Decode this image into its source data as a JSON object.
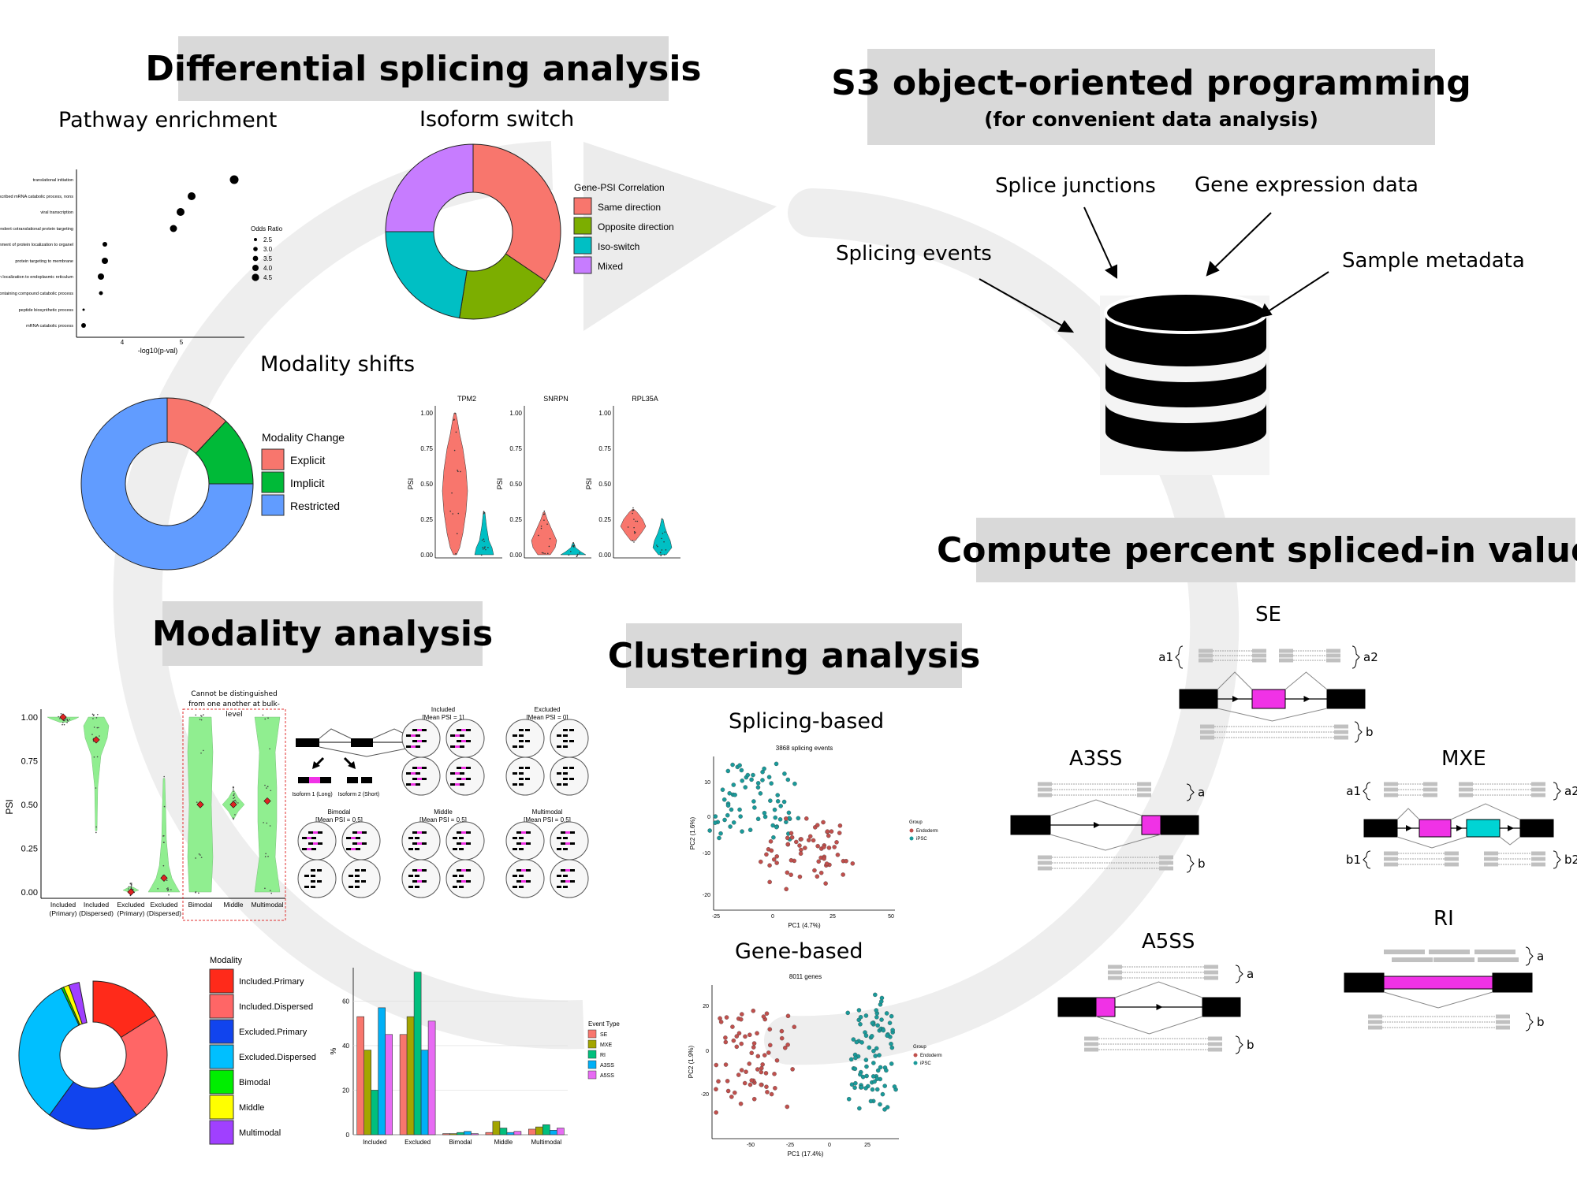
{
  "sections": {
    "differential": "Differential splicing analysis",
    "s3": "S3 object-oriented programming",
    "s3_sub": "(for convenient data analysis)",
    "psi": "Compute percent spliced-in values",
    "modality": "Modality analysis",
    "clustering": "Clustering analysis"
  },
  "data_sources": [
    "Splicing events",
    "Splice junctions",
    "Gene expression data",
    "Sample metadata"
  ],
  "colors": {
    "red": "#f8766d",
    "green": "#7cae00",
    "cyan": "#00bfc4",
    "violet": "#c77cff",
    "magenta": "#f032e6",
    "light_green": "#90ee90"
  },
  "pathway": {
    "title": "Pathway enrichment",
    "terms": [
      "translational initiation",
      "nuclear-transcribed mRNA catabolic process, nonsense-mediated decay",
      "viral transcription",
      "SRP-dependent cotranslational protein targeting to membrane",
      "establishment of protein localization to organelle",
      "protein targeting to membrane",
      "protein localization to endoplasmic reticulum",
      "nucleobase-containing compound catabolic process",
      "peptide biosynthetic process",
      "mRNA catabolic process"
    ],
    "xlabel": "-log10(p-val)",
    "xticks": [
      "4",
      "5"
    ],
    "legend_title": "Odds Ratio",
    "legend_items": [
      "2.5",
      "3.0",
      "3.5",
      "4.0",
      "4.5"
    ]
  },
  "isoform": {
    "title": "Isoform switch",
    "legend_title": "Gene-PSI Correlation",
    "items": [
      "Same direction",
      "Opposite direction",
      "Iso-switch",
      "Mixed"
    ]
  },
  "modality_shift": {
    "title": "Modality shifts",
    "legend_title": "Modality Change",
    "items": [
      "Explicit",
      "Implicit",
      "Restricted"
    ],
    "genes": [
      "TPM2",
      "SNRPN",
      "RPL35A"
    ],
    "ylabel": "PSI",
    "yticks": [
      "1.00",
      "0.75",
      "0.50",
      "0.25",
      "0.00"
    ]
  },
  "modality_panel": {
    "note": "Cannot be distinguished from one another at bulk-level",
    "categories": [
      "Included (Primary)",
      "Included (Dispersed)",
      "Excluded (Primary)",
      "Excluded (Dispersed)",
      "Bimodal",
      "Middle",
      "Multimodal"
    ],
    "ylabel": "PSI",
    "yticks": [
      "1.00",
      "0.75",
      "0.50",
      "0.25",
      "0.00"
    ],
    "isoform_long": "Isoform 1 (Long)",
    "isoform_short": "Isoform 2 (Short)",
    "schematics": [
      "Included [Mean PSI = 1]",
      "Excluded [Mean PSI = 0]",
      "Bimodal [Mean PSI = 0.5]",
      "Middle [Mean PSI = 0.5]",
      "Multimodal [Mean PSI = 0.5]"
    ]
  },
  "modality_legend": {
    "title": "Modality",
    "items": [
      "Included.Primary",
      "Included.Dispersed",
      "Excluded.Primary",
      "Excluded.Dispersed",
      "Bimodal",
      "Middle",
      "Multimodal"
    ]
  },
  "chart_data": {
    "type": "bar",
    "title": "",
    "xlabel": "",
    "ylabel": "%",
    "ylim": [
      0,
      75
    ],
    "yticks": [
      "0",
      "20",
      "40",
      "60"
    ],
    "categories": [
      "Included",
      "Excluded",
      "Bimodal",
      "Middle",
      "Multimodal"
    ],
    "legend_title": "Event Type",
    "grid": true,
    "series": [
      {
        "name": "SE",
        "values": [
          53,
          45,
          0.5,
          1,
          2.5
        ]
      },
      {
        "name": "MXE",
        "values": [
          38,
          53,
          0.5,
          6,
          3.5
        ]
      },
      {
        "name": "RI",
        "values": [
          20,
          73,
          1,
          3,
          4.5
        ]
      },
      {
        "name": "A3SS",
        "values": [
          57,
          38,
          1.5,
          1,
          2
        ]
      },
      {
        "name": "A5SS",
        "values": [
          45,
          51,
          0.5,
          1.5,
          3
        ]
      }
    ]
  },
  "clustering": {
    "splicing_title": "Splicing-based",
    "splicing_sub": "3868 splicing events",
    "splicing_x": "PC1 (4.7%)",
    "splicing_y": "PC2 (1.6%)",
    "splicing_xticks": [
      "-25",
      "0",
      "25",
      "50"
    ],
    "splicing_yticks": [
      "10",
      "0",
      "-10",
      "-20"
    ],
    "gene_title": "Gene-based",
    "gene_sub": "8011 genes",
    "gene_x": "PC1 (17.4%)",
    "gene_y": "PC2 (1.9%)",
    "gene_xticks": [
      "-50",
      "-25",
      "0",
      "25"
    ],
    "gene_yticks": [
      "20",
      "0",
      "-20"
    ],
    "group_title": "Group",
    "groups": [
      "Endoderm",
      "iPSC"
    ]
  },
  "psi_events": {
    "se": "SE",
    "a3ss": "A3SS",
    "mxe": "MXE",
    "a5ss": "A5SS",
    "ri": "RI",
    "a": "a",
    "b": "b",
    "a1": "a1",
    "a2": "a2",
    "b1": "b1",
    "b2": "b2"
  }
}
